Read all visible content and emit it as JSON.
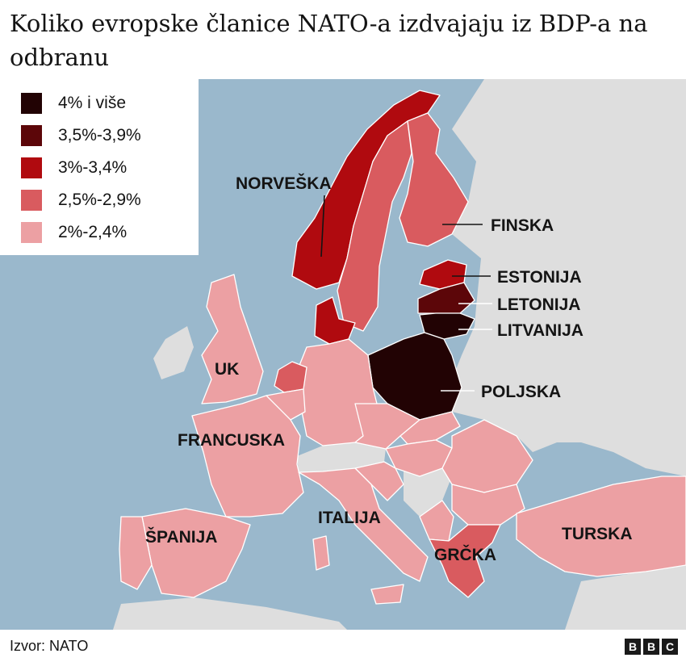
{
  "title": "Koliko evropske članice NATO-a izdvajaju iz BDP-a na odbranu",
  "colors": {
    "sea": "#9ab8cc",
    "non_nato_land": "#dedede",
    "cat_4_plus": "#220304",
    "cat_35_39": "#5c0609",
    "cat_30_34": "#b00a0f",
    "cat_25_29": "#d95b5f",
    "cat_20_24": "#eca0a3"
  },
  "legend": [
    {
      "label": "4% i više",
      "color": "#220304"
    },
    {
      "label": "3,5%-3,9%",
      "color": "#5c0609"
    },
    {
      "label": "3%-3,4%",
      "color": "#b00a0f"
    },
    {
      "label": "2,5%-2,9%",
      "color": "#d95b5f"
    },
    {
      "label": "2%-2,4%",
      "color": "#eca0a3"
    }
  ],
  "labels": {
    "norveska": "NORVEŠKA",
    "finska": "FINSKA",
    "estonija": "ESTONIJA",
    "letonija": "LETONIJA",
    "litvanija": "LITVANIJA",
    "poljska": "POLJSKA",
    "uk": "UK",
    "francuska": "FRANCUSKA",
    "italija": "ITALIJA",
    "spanija": "ŠPANIJA",
    "grcka": "GRČKA",
    "turska": "TURSKA"
  },
  "footer": {
    "source": "Izvor: NATO",
    "logo": [
      "B",
      "B",
      "C"
    ]
  }
}
